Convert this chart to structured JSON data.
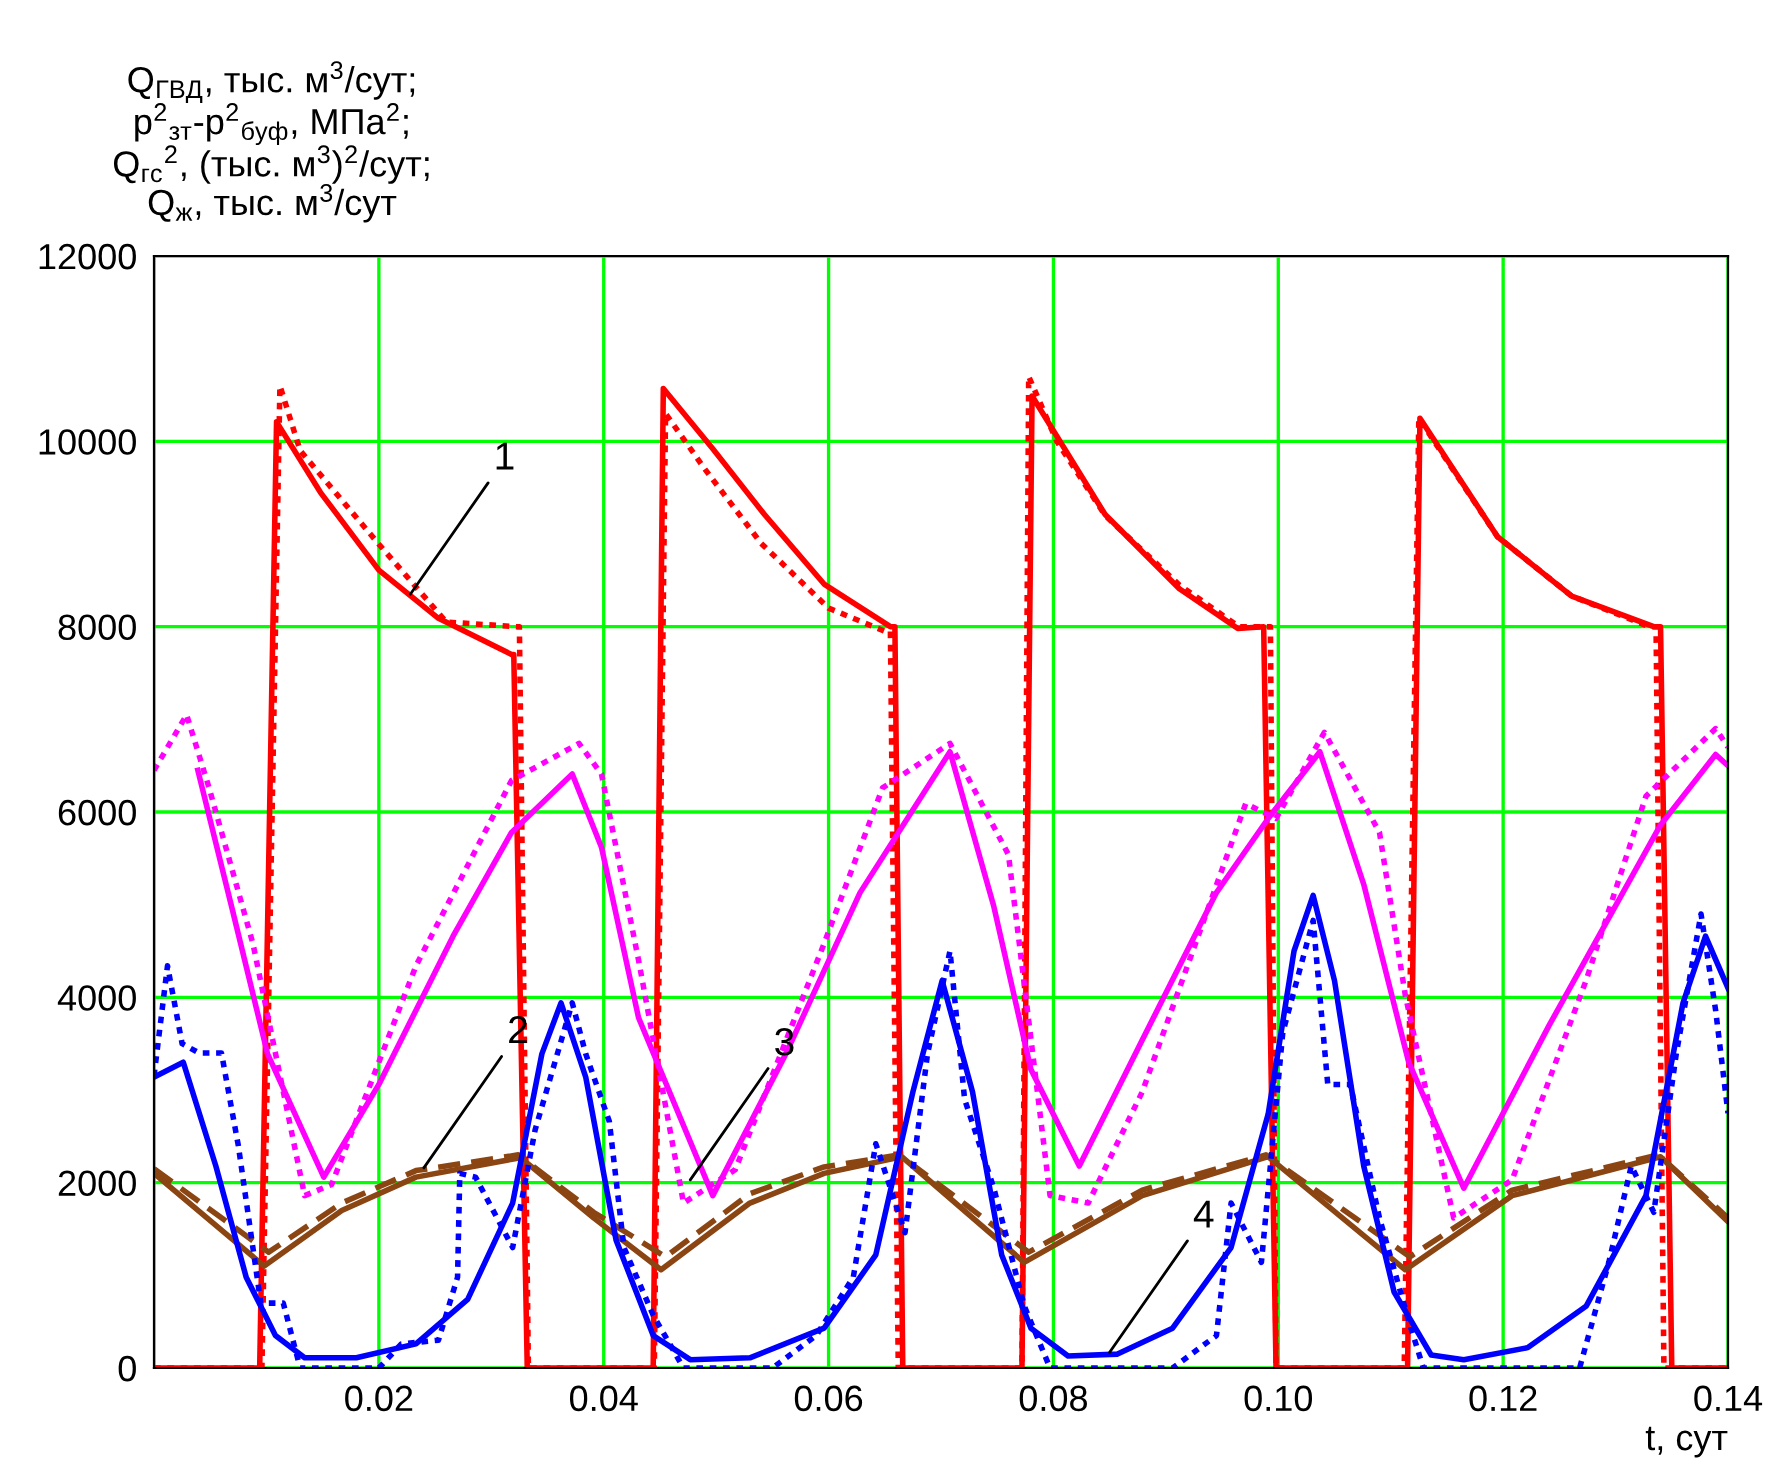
{
  "chart_data": {
    "type": "line",
    "ylabel": "Q$_{ГВД}$, тыс. м$^{3}$/сут;\np$^{2}$$_{зт}$-p$^{2}$$_{буф}$, МПа$^{2}$;\nQ$_{гс}$$^{2}$, (тыс. м$^{3}$)$^{2}$/сут;\nQ$_{ж}$, тыс. м$^{3}$/сут",
    "xlabel": "t, сут",
    "xlim": [
      0,
      0.14
    ],
    "ylim": [
      0,
      12000
    ],
    "xticks": [
      {
        "value": 0,
        "label": null
      },
      0.02,
      0.04,
      0.06,
      0.08,
      {
        "value": 0.1,
        "label": "0.10"
      },
      0.12,
      0.14
    ],
    "yticks": [
      0,
      2000,
      4000,
      6000,
      8000,
      10000,
      12000
    ],
    "grid": true,
    "legend": false,
    "marker": "none",
    "series": [
      {
        "color": "#ff0000",
        "line_style": "solid",
        "x": [
          0,
          0.0094,
          0.0109,
          0.0148,
          0.02,
          0.0253,
          0.0318,
          0.032,
          0.0332,
          0.0444,
          0.0453,
          0.0497,
          0.0543,
          0.0596,
          0.0655,
          0.0659,
          0.0666,
          0.0772,
          0.0781,
          0.0846,
          0.0912,
          0.0964,
          0.0987,
          0.0998,
          0.1115,
          0.1126,
          0.1195,
          0.1261,
          0.1334,
          0.134,
          0.135,
          0.14
        ],
        "values": [
          0,
          0,
          10210,
          9450,
          8610,
          8090,
          7700,
          7700,
          0,
          0,
          10570,
          9920,
          9210,
          8460,
          8000,
          8000,
          0,
          0,
          10490,
          9210,
          8410,
          7980,
          8000,
          0,
          0,
          10250,
          8970,
          8330,
          8000,
          8000,
          0,
          0
        ]
      },
      {
        "color": "#ff0000",
        "line_style": "dotted",
        "x": [
          0,
          0.0096,
          0.0112,
          0.013,
          0.02,
          0.026,
          0.0322,
          0.0325,
          0.0333,
          0.0445,
          0.0455,
          0.049,
          0.054,
          0.06,
          0.065,
          0.0655,
          0.0662,
          0.0772,
          0.0778,
          0.0803,
          0.0846,
          0.0912,
          0.0965,
          0.0993,
          0.0998,
          0.1112,
          0.1125,
          0.1195,
          0.1261,
          0.133,
          0.1336,
          0.1343,
          0.14
        ],
        "values": [
          0,
          0,
          10600,
          9900,
          8890,
          8050,
          8000,
          8000,
          0,
          0,
          10300,
          9700,
          8900,
          8200,
          7950,
          7950,
          0,
          0,
          10700,
          10000,
          9200,
          8450,
          8000,
          8000,
          0,
          0,
          10250,
          8970,
          8330,
          8000,
          8000,
          0,
          0
        ]
      },
      {
        "color": "#ff00ff",
        "line_style": "solid",
        "x": [
          0.0039,
          0.0069,
          0.0101,
          0.0151,
          0.02,
          0.0266,
          0.0318,
          0.0372,
          0.0398,
          0.0431,
          0.0497,
          0.0562,
          0.0628,
          0.0708,
          0.0747,
          0.078,
          0.0823,
          0.0879,
          0.0945,
          0.0991,
          0.1037,
          0.1076,
          0.1116,
          0.1165,
          0.1241,
          0.134,
          0.1389,
          0.14
        ],
        "values": [
          6450,
          4980,
          3390,
          2060,
          3060,
          4660,
          5780,
          6410,
          5620,
          3780,
          1860,
          3390,
          5130,
          6650,
          4980,
          3220,
          2180,
          3540,
          5130,
          5930,
          6650,
          5220,
          3300,
          1940,
          3700,
          5860,
          6620,
          6500
        ]
      },
      {
        "color": "#ff00ff",
        "line_style": "dotted",
        "x": [
          0,
          0.0029,
          0.0049,
          0.0088,
          0.0134,
          0.0158,
          0.0233,
          0.0318,
          0.0378,
          0.0398,
          0.0431,
          0.0471,
          0.0517,
          0.0596,
          0.0648,
          0.0708,
          0.076,
          0.0797,
          0.0831,
          0.0879,
          0.0971,
          0.0998,
          0.1041,
          0.109,
          0.1113,
          0.1156,
          0.1208,
          0.1274,
          0.1327,
          0.1389,
          0.14
        ],
        "values": [
          6450,
          7050,
          6260,
          4580,
          1860,
          1980,
          4340,
          6340,
          6740,
          6410,
          4400,
          1780,
          2140,
          4580,
          6260,
          6740,
          5540,
          1860,
          1780,
          2980,
          6090,
          5930,
          6860,
          5780,
          4020,
          1620,
          2030,
          4190,
          6170,
          6900,
          6700
        ]
      },
      {
        "color": "#8b4513",
        "line_style": "solid",
        "x": [
          0,
          0.0098,
          0.0167,
          0.0233,
          0.0326,
          0.0391,
          0.0451,
          0.053,
          0.0596,
          0.0665,
          0.0774,
          0.0879,
          0.0991,
          0.1113,
          0.1208,
          0.134,
          0.14
        ],
        "values": [
          2100,
          1100,
          1700,
          2060,
          2270,
          1620,
          1060,
          1780,
          2100,
          2280,
          1140,
          1860,
          2280,
          1060,
          1860,
          2280,
          1580
        ]
      },
      {
        "color": "#8b4513",
        "line_style": "dashed",
        "x": [
          0,
          0.0102,
          0.0167,
          0.0233,
          0.0324,
          0.0391,
          0.0455,
          0.053,
          0.0596,
          0.0663,
          0.0778,
          0.0879,
          0.0989,
          0.1117,
          0.1208,
          0.1338,
          0.14
        ],
        "values": [
          2150,
          1250,
          1780,
          2130,
          2300,
          1680,
          1200,
          1880,
          2170,
          2300,
          1250,
          1920,
          2300,
          1200,
          1920,
          2300,
          1620
        ]
      },
      {
        "color": "#0000ff",
        "line_style": "solid",
        "x": [
          0,
          0.0026,
          0.0055,
          0.0082,
          0.0108,
          0.0134,
          0.018,
          0.0233,
          0.0279,
          0.0319,
          0.0345,
          0.0362,
          0.0384,
          0.0411,
          0.0444,
          0.0477,
          0.053,
          0.0596,
          0.0642,
          0.0675,
          0.0701,
          0.0728,
          0.0754,
          0.078,
          0.0813,
          0.0857,
          0.0906,
          0.0958,
          0.0991,
          0.1014,
          0.1031,
          0.105,
          0.1076,
          0.1103,
          0.1136,
          0.1165,
          0.1222,
          0.1274,
          0.1327,
          0.136,
          0.138,
          0.14
        ],
        "values": [
          3140,
          3300,
          2180,
          980,
          350,
          110,
          110,
          260,
          740,
          1780,
          3390,
          3940,
          3140,
          1380,
          350,
          90,
          110,
          430,
          1220,
          2980,
          4180,
          2980,
          1220,
          430,
          130,
          150,
          430,
          1300,
          2740,
          4500,
          5100,
          4180,
          2180,
          820,
          140,
          90,
          220,
          670,
          1860,
          3940,
          4660,
          4100
        ]
      },
      {
        "color": "#0000ff",
        "line_style": "dotted",
        "x": [
          0,
          0.0012,
          0.0025,
          0.004,
          0.006,
          0.0075,
          0.0095,
          0.0115,
          0.013,
          0.02,
          0.022,
          0.0253,
          0.027,
          0.0272,
          0.0286,
          0.0319,
          0.0339,
          0.0372,
          0.0384,
          0.0405,
          0.0418,
          0.0444,
          0.0471,
          0.055,
          0.0589,
          0.0622,
          0.0642,
          0.0668,
          0.0688,
          0.0708,
          0.0721,
          0.0747,
          0.0774,
          0.0797,
          0.0906,
          0.0945,
          0.0958,
          0.0985,
          0.1004,
          0.1031,
          0.1044,
          0.1064,
          0.109,
          0.1116,
          0.1129,
          0.1268,
          0.1294,
          0.1314,
          0.1334,
          0.1354,
          0.1376,
          0.1389,
          0.14
        ],
        "values": [
          3150,
          4340,
          3500,
          3400,
          3400,
          2400,
          700,
          700,
          0,
          0,
          260,
          300,
          980,
          2100,
          2060,
          1300,
          2570,
          3940,
          3390,
          2660,
          1300,
          570,
          0,
          0,
          350,
          980,
          2420,
          1460,
          3390,
          4500,
          2900,
          1940,
          670,
          0,
          0,
          350,
          1780,
          1140,
          3620,
          4830,
          3060,
          3060,
          1620,
          510,
          0,
          0,
          1140,
          2180,
          1680,
          3390,
          4900,
          3860,
          2750
        ]
      }
    ],
    "annotations": [
      {
        "text": "1",
        "x": 0.0228,
        "y": 8350
      },
      {
        "text": "2",
        "x": 0.024,
        "y": 2160
      },
      {
        "text": "3",
        "x": 0.0477,
        "y": 2030
      },
      {
        "text": "4",
        "x": 0.085,
        "y": 170
      }
    ]
  }
}
